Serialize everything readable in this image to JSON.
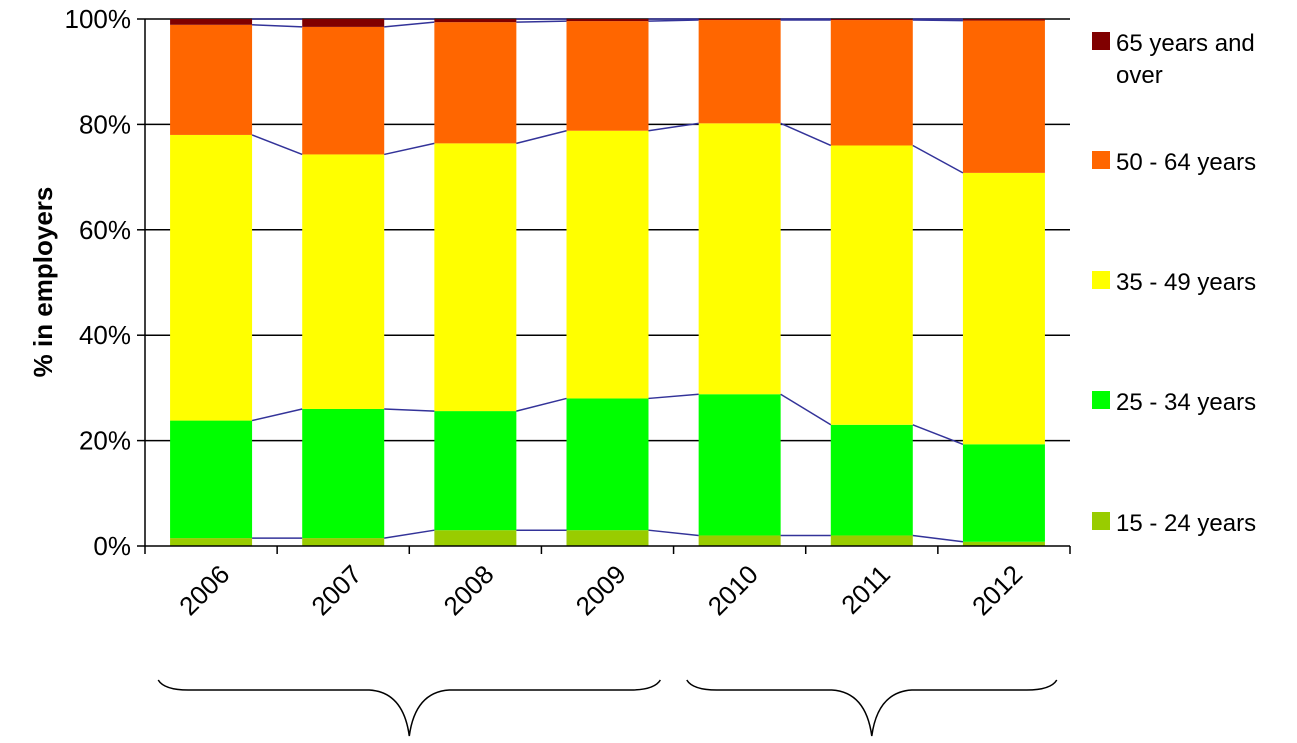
{
  "chart_data": {
    "type": "bar",
    "stacked": true,
    "percent_stacked": true,
    "categories": [
      "2006",
      "2007",
      "2008",
      "2009",
      "2010",
      "2011",
      "2012"
    ],
    "ylabel": "% in employers",
    "xlabel": "",
    "ylim": [
      0,
      100
    ],
    "yticks": [
      "0%",
      "20%",
      "40%",
      "60%",
      "80%",
      "100%"
    ],
    "gridlines": true,
    "series_lines": true,
    "legend_position": "right",
    "series": [
      {
        "name": "15 - 24 years",
        "color": "#99CC00",
        "values": [
          1.5,
          1.5,
          3.0,
          3.0,
          2.0,
          2.0,
          0.8
        ]
      },
      {
        "name": "25 - 34 years",
        "color": "#00FF00",
        "values": [
          22.3,
          24.5,
          22.6,
          25.0,
          26.8,
          21.0,
          18.5
        ]
      },
      {
        "name": "35 - 49 years",
        "color": "#FFFF00",
        "values": [
          54.2,
          48.3,
          50.8,
          50.8,
          51.4,
          53.0,
          51.5
        ]
      },
      {
        "name": "50 - 64 years",
        "color": "#FF6600",
        "values": [
          20.9,
          24.2,
          23.0,
          20.8,
          19.6,
          23.8,
          28.9
        ]
      },
      {
        "name": "65 years and over",
        "color": "#800000",
        "values": [
          1.1,
          1.5,
          0.6,
          0.4,
          0.2,
          0.2,
          0.3
        ]
      }
    ],
    "legend": [
      {
        "label_lines": [
          "65 years and",
          "over"
        ],
        "color": "#800000"
      },
      {
        "label_lines": [
          "50 - 64 years"
        ],
        "color": "#FF6600"
      },
      {
        "label_lines": [
          "35 - 49 years"
        ],
        "color": "#FFFF00"
      },
      {
        "label_lines": [
          "25 - 34 years"
        ],
        "color": "#00FF00"
      },
      {
        "label_lines": [
          "15 - 24 years"
        ],
        "color": "#99CC00"
      }
    ],
    "group_braces": [
      {
        "categories": [
          "2006",
          "2007",
          "2008",
          "2009"
        ]
      },
      {
        "categories": [
          "2010",
          "2011",
          "2012"
        ]
      }
    ],
    "line_color": "#333399"
  }
}
